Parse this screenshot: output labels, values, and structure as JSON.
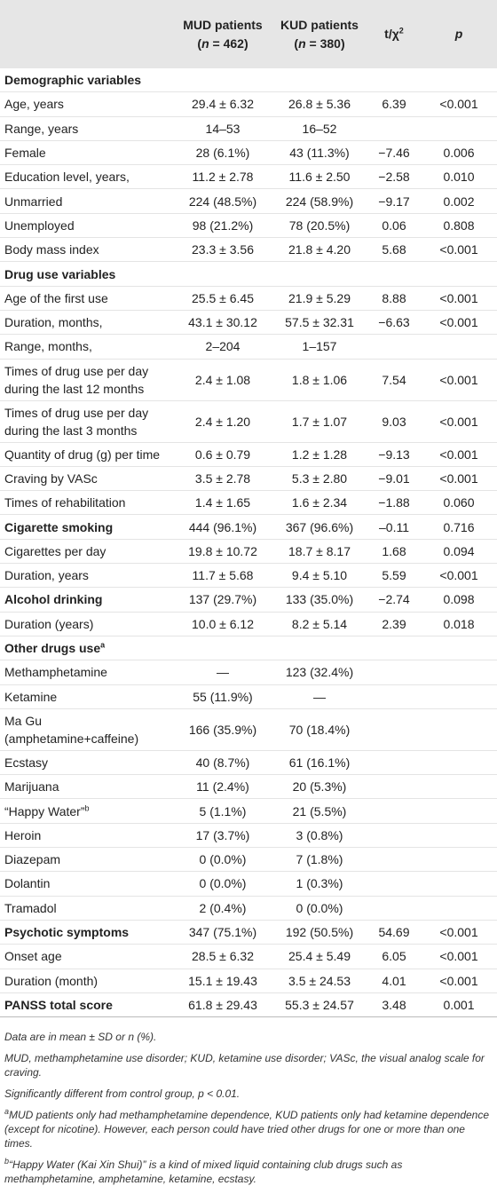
{
  "table": {
    "header": [
      {
        "title": "MUD patients",
        "size": {
          "pre": "(",
          "n": "n",
          "post": " = 462)"
        }
      },
      {
        "title": "KUD patients",
        "size": {
          "pre": "(",
          "n": "n",
          "post": " = 380)"
        }
      },
      {
        "title": "t/χ",
        "sup": "2"
      },
      {
        "title": "p"
      }
    ],
    "rows": [
      {
        "label": "Demographic variables",
        "bold": true,
        "cells": [
          null,
          null,
          null,
          null
        ]
      },
      {
        "label": "Age, years",
        "cells": [
          "29.4 ± 6.32",
          "26.8 ± 5.36",
          "6.39",
          "<0.001"
        ]
      },
      {
        "label": "Range, years",
        "cells": [
          "14–53",
          "16–52",
          null,
          null
        ]
      },
      {
        "label": "Female",
        "cells": [
          "28 (6.1%)",
          "43 (11.3%)",
          "−7.46",
          "0.006"
        ]
      },
      {
        "label": "Education level, years,",
        "cells": [
          "11.2 ± 2.78",
          "11.6 ± 2.50",
          "−2.58",
          "0.010"
        ]
      },
      {
        "label": "Unmarried",
        "cells": [
          "224 (48.5%)",
          "224 (58.9%)",
          "−9.17",
          "0.002"
        ]
      },
      {
        "label": "Unemployed",
        "cells": [
          "98 (21.2%)",
          "78 (20.5%)",
          "0.06",
          "0.808"
        ]
      },
      {
        "label": "Body mass index",
        "cells": [
          "23.3 ± 3.56",
          "21.8 ± 4.20",
          "5.68",
          "<0.001"
        ]
      },
      {
        "label": "Drug use variables",
        "bold": true,
        "cells": [
          null,
          null,
          null,
          null
        ]
      },
      {
        "label": "Age of the first use",
        "cells": [
          "25.5 ± 6.45",
          "21.9 ± 5.29",
          "8.88",
          "<0.001"
        ]
      },
      {
        "label": "Duration, months,",
        "cells": [
          "43.1 ± 30.12",
          "57.5 ± 32.31",
          "−6.63",
          "<0.001"
        ]
      },
      {
        "label": "Range, months,",
        "cells": [
          "2–204",
          "1–157",
          null,
          null
        ]
      },
      {
        "label": "Times of drug use per day during the last 12 months",
        "cells": [
          "2.4 ± 1.08",
          "1.8 ± 1.06",
          "7.54",
          "<0.001"
        ]
      },
      {
        "label": "Times of drug use per day during the last 3 months",
        "cells": [
          "2.4 ± 1.20",
          "1.7 ± 1.07",
          "9.03",
          "<0.001"
        ]
      },
      {
        "label": "Quantity of drug (g) per time",
        "cells": [
          "0.6 ± 0.79",
          "1.2 ± 1.28",
          "−9.13",
          "<0.001"
        ]
      },
      {
        "label": "Craving by VASc",
        "cells": [
          "3.5 ± 2.78",
          "5.3 ± 2.80",
          "−9.01",
          "<0.001"
        ]
      },
      {
        "label": "Times of rehabilitation",
        "cells": [
          "1.4 ± 1.65",
          "1.6 ± 2.34",
          "−1.88",
          "0.060"
        ]
      },
      {
        "label": "Cigarette smoking",
        "bold": true,
        "cells": [
          "444 (96.1%)",
          "367 (96.6%)",
          "–0.11",
          "0.716"
        ]
      },
      {
        "label": "Cigarettes per day",
        "cells": [
          "19.8 ± 10.72",
          "18.7 ± 8.17",
          "1.68",
          "0.094"
        ]
      },
      {
        "label": "Duration, years",
        "cells": [
          "11.7 ± 5.68",
          "9.4 ± 5.10",
          "5.59",
          "<0.001"
        ]
      },
      {
        "label": "Alcohol drinking",
        "bold": true,
        "cells": [
          "137 (29.7%)",
          "133 (35.0%)",
          "−2.74",
          "0.098"
        ]
      },
      {
        "label": "Duration (years)",
        "cells": [
          "10.0 ± 6.12",
          "8.2 ± 5.14",
          "2.39",
          "0.018"
        ]
      },
      {
        "label": "Other drugs use",
        "sup": "a",
        "bold": true,
        "cells": [
          null,
          null,
          null,
          null
        ]
      },
      {
        "label": "Methamphetamine",
        "cells": [
          "—",
          "123 (32.4%)",
          null,
          null
        ]
      },
      {
        "label": "Ketamine",
        "cells": [
          "55 (11.9%)",
          "—",
          null,
          null
        ]
      },
      {
        "label": "Ma Gu (amphetamine+caffeine)",
        "cells": [
          "166 (35.9%)",
          "70 (18.4%)",
          null,
          null
        ]
      },
      {
        "label": "Ecstasy",
        "cells": [
          "40 (8.7%)",
          "61 (16.1%)",
          null,
          null
        ]
      },
      {
        "label": "Marijuana",
        "cells": [
          "11 (2.4%)",
          "20 (5.3%)",
          null,
          null
        ]
      },
      {
        "label": "“Happy Water”",
        "sup": "b",
        "cells": [
          "5 (1.1%)",
          "21 (5.5%)",
          null,
          null
        ]
      },
      {
        "label": "Heroin",
        "cells": [
          "17 (3.7%)",
          "3 (0.8%)",
          null,
          null
        ]
      },
      {
        "label": "Diazepam",
        "cells": [
          "0 (0.0%)",
          "7 (1.8%)",
          null,
          null
        ]
      },
      {
        "label": "Dolantin",
        "cells": [
          "0 (0.0%)",
          "1 (0.3%)",
          null,
          null
        ]
      },
      {
        "label": "Tramadol",
        "cells": [
          "2 (0.4%)",
          "0 (0.0%)",
          null,
          null
        ]
      },
      {
        "label": "Psychotic symptoms",
        "bold": true,
        "cells": [
          "347 (75.1%)",
          "192 (50.5%)",
          "54.69",
          "<0.001"
        ]
      },
      {
        "label": "Onset age",
        "cells": [
          "28.5 ± 6.32",
          "25.4 ± 5.49",
          "6.05",
          "<0.001"
        ]
      },
      {
        "label": "Duration (month)",
        "cells": [
          "15.1 ± 19.43",
          "3.5 ± 24.53",
          "4.01",
          "<0.001"
        ]
      },
      {
        "label": "PANSS total score",
        "bold": true,
        "cells": [
          "61.8 ± 29.43",
          "55.3 ± 24.57",
          "3.48",
          "0.001"
        ]
      }
    ],
    "footnotes": [
      {
        "text": "Data are in mean ± SD or n (%)."
      },
      {
        "text": "MUD, methamphetamine use disorder; KUD, ketamine use disorder; VASc, the visual analog scale for craving."
      },
      {
        "text": "Significantly different from control group, p < 0.01."
      },
      {
        "mark": "a",
        "text": "MUD patients only had methamphetamine dependence, KUD patients only had ketamine dependence (except for nicotine). However, each person could have tried other drugs for one or more than one times."
      },
      {
        "mark": "b",
        "text": "“Happy Water (Kai Xin Shui)” is a kind of mixed liquid containing club drugs such as methamphetamine, amphetamine, ketamine, ecstasy."
      }
    ]
  }
}
